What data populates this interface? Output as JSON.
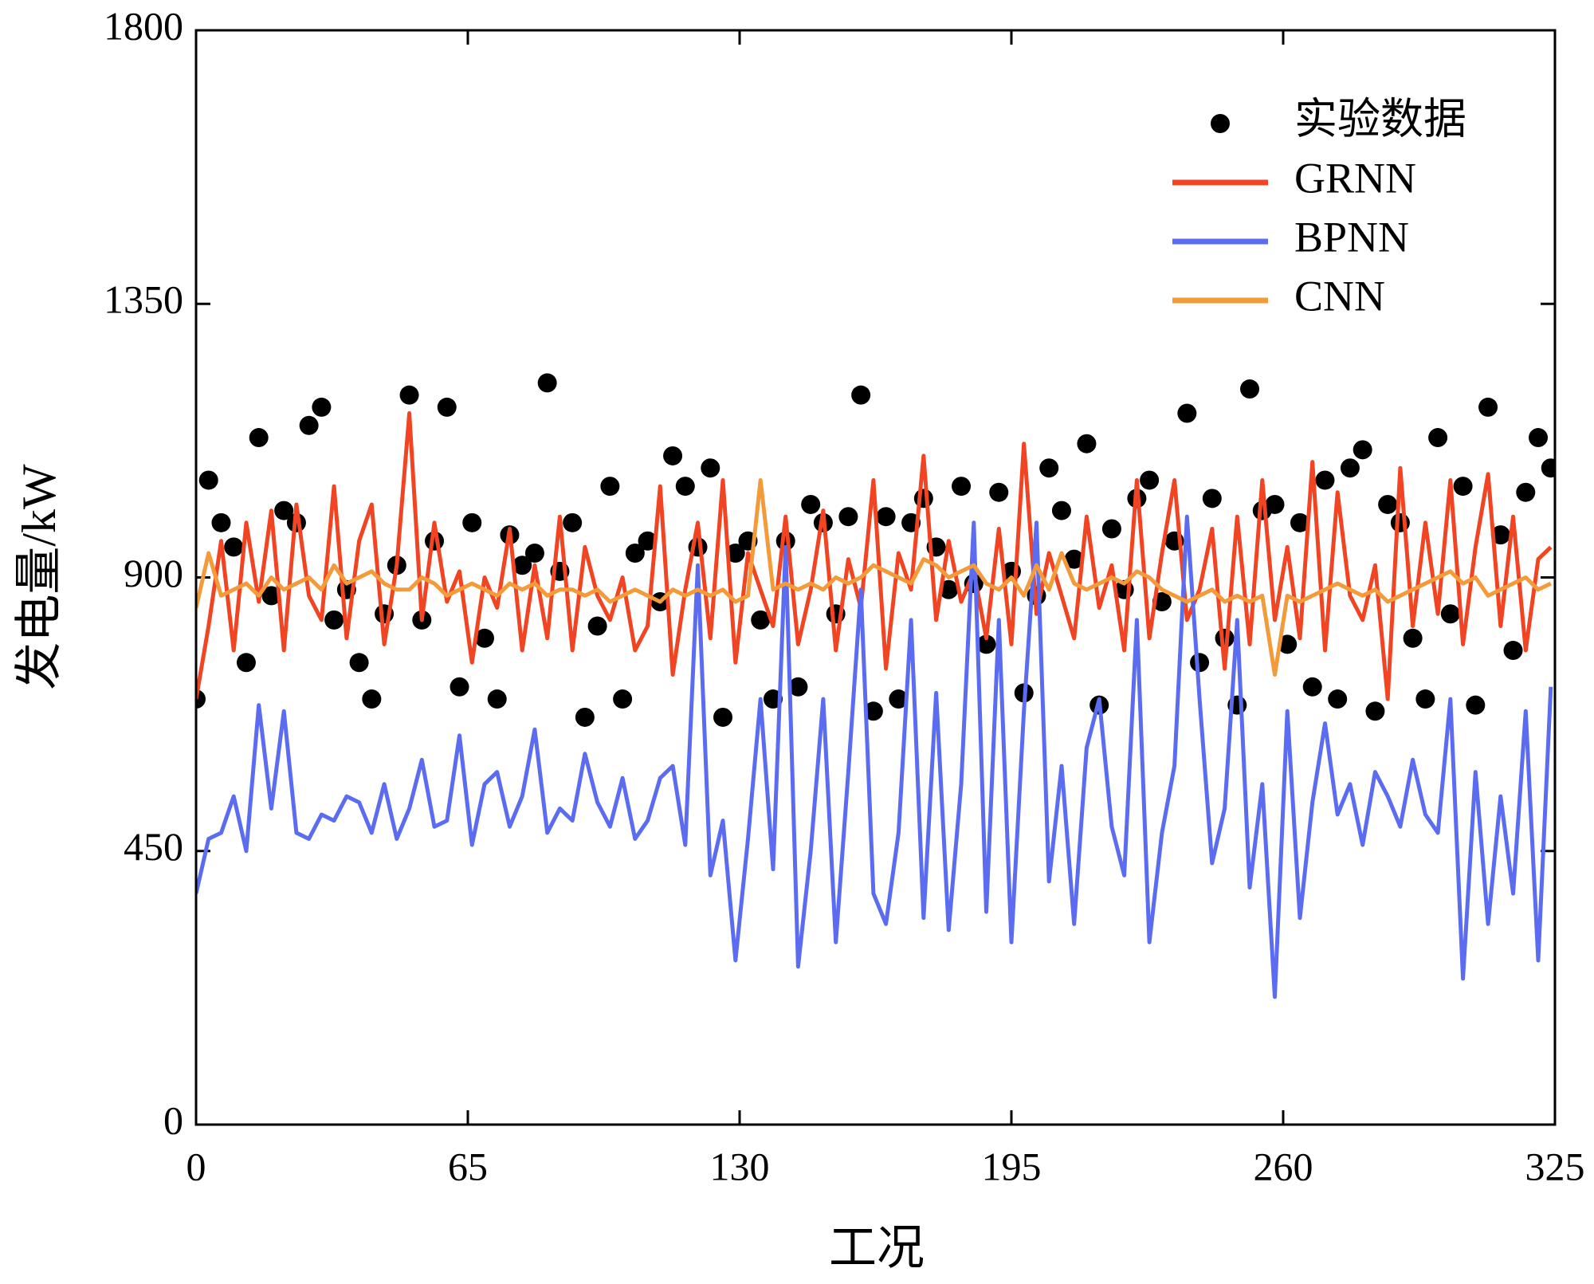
{
  "chart_data": {
    "type": "line",
    "xlabel": "工况",
    "ylabel": "发电量/kW",
    "xlim": [
      0,
      325
    ],
    "xticks": [
      0,
      65,
      130,
      195,
      260,
      325
    ],
    "ylim": [
      0,
      1800
    ],
    "yticks": [
      0,
      450,
      900,
      1350,
      1800
    ],
    "grid": false,
    "legend": "upper right",
    "x": [
      0,
      3,
      6,
      9,
      12,
      15,
      18,
      21,
      24,
      27,
      30,
      33,
      36,
      39,
      42,
      45,
      48,
      51,
      54,
      57,
      60,
      63,
      66,
      69,
      72,
      75,
      78,
      81,
      84,
      87,
      90,
      93,
      96,
      99,
      102,
      105,
      108,
      111,
      114,
      117,
      120,
      123,
      126,
      129,
      132,
      135,
      138,
      141,
      144,
      147,
      150,
      153,
      156,
      159,
      162,
      165,
      168,
      171,
      174,
      177,
      180,
      183,
      186,
      189,
      192,
      195,
      198,
      201,
      204,
      207,
      210,
      213,
      216,
      219,
      222,
      225,
      228,
      231,
      234,
      237,
      240,
      243,
      246,
      249,
      252,
      255,
      258,
      261,
      264,
      267,
      270,
      273,
      276,
      279,
      282,
      285,
      288,
      291,
      294,
      297,
      300,
      303,
      306,
      309,
      312,
      315,
      318,
      321,
      324
    ],
    "series": [
      {
        "name": "实验数据",
        "type": "scatter",
        "color": "#000000",
        "values": [
          700,
          1060,
          990,
          950,
          760,
          1130,
          870,
          1010,
          990,
          1150,
          1180,
          830,
          880,
          760,
          700,
          840,
          920,
          1200,
          830,
          960,
          1180,
          720,
          990,
          800,
          700,
          970,
          920,
          940,
          1220,
          910,
          990,
          670,
          820,
          1050,
          700,
          940,
          960,
          860,
          1100,
          1050,
          950,
          1080,
          670,
          940,
          960,
          830,
          700,
          960,
          720,
          1020,
          990,
          840,
          1000,
          1200,
          680,
          1000,
          700,
          990,
          1030,
          950,
          880,
          1050,
          890,
          790,
          1040,
          910,
          710,
          870,
          1080,
          1010,
          930,
          1120,
          690,
          980,
          880,
          1030,
          1060,
          860,
          960,
          1170,
          760,
          1030,
          800,
          690,
          1210,
          1010,
          1020,
          790,
          990,
          720,
          1060,
          700,
          1080,
          1110,
          680,
          1020,
          990,
          800,
          700,
          1130,
          840,
          1050,
          690,
          1180,
          970,
          780,
          1040,
          1130,
          1080
        ]
      },
      {
        "name": "GRNN",
        "type": "line",
        "color": "#f04423",
        "values": [
          700,
          820,
          960,
          780,
          990,
          860,
          1010,
          780,
          1020,
          870,
          830,
          1050,
          800,
          960,
          1020,
          790,
          920,
          1170,
          830,
          990,
          860,
          910,
          760,
          900,
          850,
          980,
          780,
          920,
          800,
          1000,
          780,
          950,
          870,
          830,
          900,
          780,
          820,
          1050,
          740,
          880,
          990,
          800,
          1060,
          760,
          940,
          880,
          820,
          1000,
          790,
          880,
          1010,
          780,
          930,
          850,
          1060,
          750,
          940,
          880,
          1100,
          830,
          960,
          860,
          910,
          800,
          980,
          790,
          1120,
          840,
          940,
          870,
          800,
          1000,
          850,
          920,
          780,
          1060,
          800,
          940,
          1060,
          830,
          880,
          980,
          750,
          1000,
          790,
          1060,
          830,
          950,
          800,
          1090,
          780,
          1040,
          870,
          830,
          920,
          700,
          1080,
          820,
          990,
          840,
          1060,
          790,
          950,
          1070,
          820,
          1000,
          780,
          930,
          950
        ]
      },
      {
        "name": "BPNN",
        "type": "line",
        "color": "#5b6cf0",
        "values": [
          380,
          470,
          480,
          540,
          450,
          690,
          520,
          680,
          480,
          470,
          510,
          500,
          540,
          530,
          480,
          560,
          470,
          520,
          600,
          490,
          500,
          640,
          460,
          560,
          580,
          490,
          540,
          650,
          480,
          520,
          500,
          610,
          530,
          490,
          570,
          470,
          500,
          570,
          590,
          460,
          920,
          410,
          500,
          270,
          470,
          700,
          420,
          950,
          260,
          450,
          700,
          300,
          580,
          880,
          380,
          330,
          480,
          830,
          340,
          710,
          320,
          560,
          990,
          350,
          830,
          300,
          680,
          990,
          400,
          590,
          330,
          620,
          700,
          490,
          410,
          830,
          300,
          480,
          590,
          1000,
          700,
          430,
          520,
          830,
          390,
          560,
          210,
          680,
          340,
          530,
          660,
          510,
          560,
          460,
          580,
          540,
          490,
          600,
          510,
          480,
          700,
          240,
          580,
          330,
          540,
          380,
          680,
          270,
          720
        ]
      },
      {
        "name": "CNN",
        "type": "line",
        "color": "#f39a3a",
        "values": [
          850,
          940,
          870,
          880,
          890,
          870,
          900,
          880,
          890,
          900,
          880,
          920,
          890,
          900,
          910,
          890,
          880,
          880,
          900,
          890,
          870,
          880,
          890,
          880,
          870,
          890,
          880,
          890,
          870,
          880,
          880,
          870,
          880,
          860,
          870,
          880,
          870,
          860,
          880,
          870,
          880,
          870,
          880,
          860,
          870,
          1060,
          880,
          890,
          880,
          890,
          880,
          900,
          890,
          900,
          920,
          910,
          900,
          890,
          930,
          920,
          900,
          910,
          920,
          890,
          880,
          900,
          870,
          920,
          880,
          940,
          890,
          880,
          890,
          900,
          890,
          910,
          900,
          880,
          870,
          860,
          870,
          880,
          860,
          870,
          860,
          870,
          740,
          870,
          860,
          870,
          880,
          890,
          880,
          870,
          880,
          860,
          870,
          880,
          890,
          900,
          910,
          890,
          900,
          870,
          880,
          890,
          900,
          880,
          890
        ]
      }
    ]
  }
}
